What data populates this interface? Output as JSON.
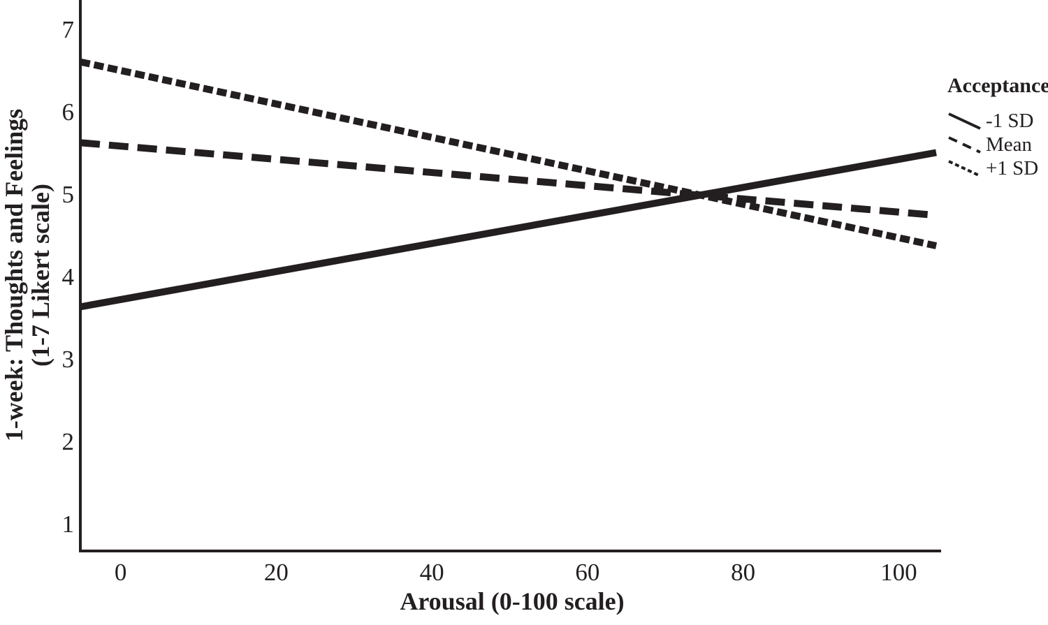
{
  "figure": {
    "background": "#ffffff",
    "ink_color": "#231f20"
  },
  "chart_data": {
    "type": "line",
    "title": "",
    "xlabel": "Arousal (0-100 scale)",
    "ylabel": "1-week: Thoughts and Feelings (1-7 Likert scale)",
    "ylabel_line1": "1-week: Thoughts and Feelings",
    "ylabel_line2": "(1-7 Likert scale)",
    "x_ticks": [
      0,
      20,
      40,
      60,
      80,
      100
    ],
    "y_ticks": [
      1,
      2,
      3,
      4,
      5,
      6,
      7
    ],
    "xlim": [
      -5,
      105
    ],
    "ylim": [
      0.68,
      7.36
    ],
    "grid": false,
    "legend": {
      "title": "Acceptance",
      "position": "outside-right-top"
    },
    "series": [
      {
        "name": "-1 SD",
        "style": "solid",
        "x": [
          -5,
          105
        ],
        "y": [
          3.64,
          5.51
        ]
      },
      {
        "name": "Mean",
        "style": "dashed",
        "x": [
          -5,
          105
        ],
        "y": [
          5.63,
          4.75
        ]
      },
      {
        "name": "+1 SD",
        "style": "dotted",
        "x": [
          -5,
          105
        ],
        "y": [
          6.61,
          4.38
        ]
      }
    ],
    "line_color": "#231f20"
  }
}
